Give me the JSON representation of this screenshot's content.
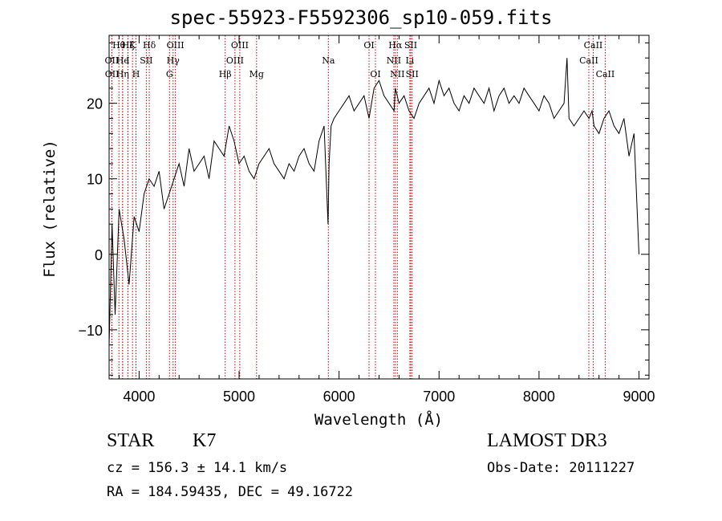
{
  "title": "spec-55923-F5592306_sp10-059.fits",
  "info": {
    "object_class": "STAR",
    "subclass": "K7",
    "survey": "LAMOST DR3",
    "redshift": "cz = 156.3 ± 14.1 km/s",
    "obs_date": "Obs-Date: 20111227",
    "coords": "RA = 184.59435, DEC =  49.16722"
  },
  "chart_data": {
    "type": "line",
    "title": "spec-55923-F5592306_sp10-059.fits",
    "xlabel": "Wavelength (Å)",
    "ylabel": "Flux (relative)",
    "xlim": [
      3700,
      9100
    ],
    "ylim": [
      -16.5,
      29
    ],
    "xticks": [
      4000,
      5000,
      6000,
      7000,
      8000,
      9000
    ],
    "yticks": [
      -10,
      0,
      10,
      20
    ],
    "grid": false,
    "line_color": "#000000",
    "marker_color": "#c00000",
    "series": [
      {
        "x": [
          3700,
          3730,
          3760,
          3800,
          3850,
          3900,
          3950,
          4000,
          4050,
          4100,
          4150,
          4200,
          4250,
          4300,
          4350,
          4400,
          4450,
          4500,
          4550,
          4600,
          4650,
          4700,
          4750,
          4800,
          4850,
          4900,
          4950,
          5000,
          5050,
          5100,
          5150,
          5200,
          5250,
          5300,
          5350,
          5400,
          5450,
          5500,
          5550,
          5600,
          5650,
          5700,
          5750,
          5800,
          5850,
          5890,
          5900,
          5920,
          5950,
          6000,
          6050,
          6100,
          6150,
          6200,
          6250,
          6300,
          6350,
          6400,
          6450,
          6500,
          6550,
          6563,
          6600,
          6650,
          6700,
          6750,
          6800,
          6850,
          6900,
          6950,
          7000,
          7050,
          7100,
          7150,
          7200,
          7250,
          7300,
          7350,
          7400,
          7450,
          7500,
          7550,
          7600,
          7650,
          7700,
          7750,
          7800,
          7850,
          7900,
          7950,
          8000,
          8050,
          8100,
          8150,
          8200,
          8250,
          8280,
          8300,
          8350,
          8400,
          8450,
          8500,
          8530,
          8550,
          8600,
          8650,
          8700,
          8750,
          8800,
          8850,
          8900,
          8950,
          9000
        ],
        "y": [
          -12,
          4,
          -8,
          6,
          2,
          -4,
          5,
          3,
          8,
          10,
          9,
          11,
          6,
          8,
          10,
          12,
          9,
          14,
          11,
          12,
          13,
          10,
          15,
          14,
          13,
          17,
          15,
          12,
          13,
          11,
          10,
          12,
          13,
          14,
          12,
          11,
          10,
          12,
          11,
          13,
          14,
          12,
          11,
          15,
          17,
          4,
          12,
          17,
          18,
          19,
          20,
          21,
          19,
          20,
          21,
          18,
          22,
          23,
          21,
          20,
          19,
          22,
          20,
          21,
          19,
          18,
          20,
          21,
          22,
          20,
          23,
          21,
          22,
          20,
          19,
          21,
          20,
          22,
          21,
          20,
          22,
          19,
          21,
          22,
          20,
          21,
          20,
          22,
          21,
          20,
          19,
          21,
          20,
          18,
          19,
          20,
          26,
          18,
          17,
          18,
          19,
          18,
          19,
          17,
          16,
          18,
          19,
          17,
          16,
          18,
          13,
          16,
          0
        ]
      }
    ],
    "lines": [
      {
        "label": "Hθ",
        "wave": 3798,
        "row": 0
      },
      {
        "label": "OII",
        "wave": 3727,
        "row": 1
      },
      {
        "label": "OII",
        "wave": 3729,
        "row": 2
      },
      {
        "label": "Hζ",
        "wave": 3889,
        "row": 0
      },
      {
        "label": "He",
        "wave": 3835,
        "row": 1
      },
      {
        "label": "Hη",
        "wave": 3835,
        "row": 2
      },
      {
        "label": "K",
        "wave": 3934,
        "row": 0
      },
      {
        "label": "I",
        "wave": 3888,
        "row": 1
      },
      {
        "label": "H",
        "wave": 3969,
        "row": 2
      },
      {
        "label": "Hδ",
        "wave": 4102,
        "row": 0
      },
      {
        "label": "SII",
        "wave": 4072,
        "row": 1
      },
      {
        "label": "OIII",
        "wave": 4363,
        "row": 0
      },
      {
        "label": "Hγ",
        "wave": 4340,
        "row": 1
      },
      {
        "label": "G",
        "wave": 4304,
        "row": 2
      },
      {
        "label": "Hβ",
        "wave": 4861,
        "row": 2
      },
      {
        "label": "OIII",
        "wave": 5007,
        "row": 0
      },
      {
        "label": "OIII",
        "wave": 4959,
        "row": 1
      },
      {
        "label": "Mg",
        "wave": 5175,
        "row": 2
      },
      {
        "label": "Na",
        "wave": 5893,
        "row": 1
      },
      {
        "label": "OI",
        "wave": 6300,
        "row": 0
      },
      {
        "label": "OI",
        "wave": 6364,
        "row": 2
      },
      {
        "label": "Hα",
        "wave": 6563,
        "row": 0
      },
      {
        "label": "NII",
        "wave": 6548,
        "row": 1
      },
      {
        "label": "NII",
        "wave": 6583,
        "row": 2
      },
      {
        "label": "SII",
        "wave": 6717,
        "row": 0
      },
      {
        "label": "Li",
        "wave": 6708,
        "row": 1
      },
      {
        "label": "SII",
        "wave": 6731,
        "row": 2
      },
      {
        "label": "CaII",
        "wave": 8542,
        "row": 0
      },
      {
        "label": "CaII",
        "wave": 8498,
        "row": 1
      },
      {
        "label": "CaII",
        "wave": 8662,
        "row": 2
      }
    ]
  }
}
